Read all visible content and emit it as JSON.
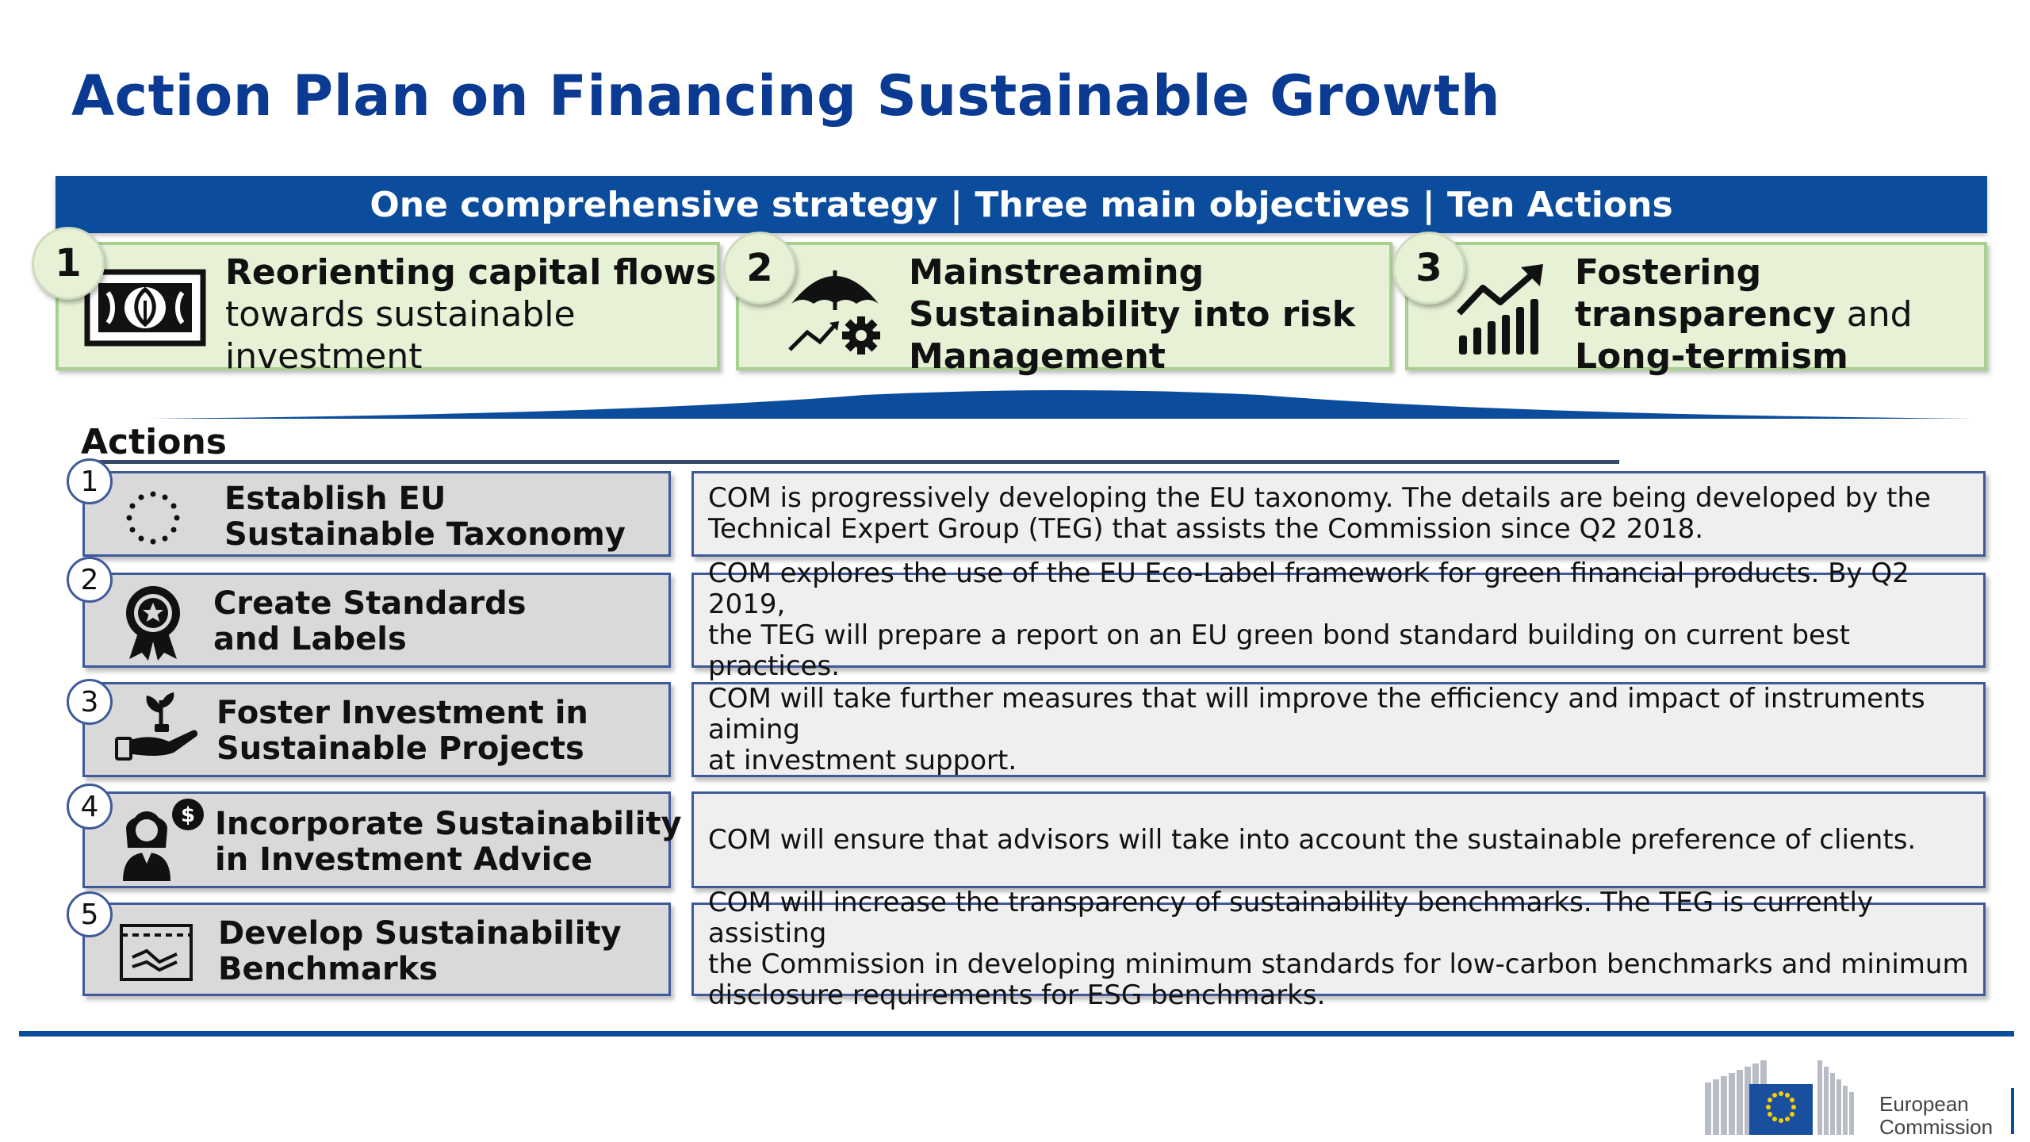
{
  "title": "Action Plan on Financing Sustainable Growth",
  "banner": "One comprehensive strategy | Three main objectives | Ten Actions",
  "objectives": [
    {
      "number": "1",
      "line1": "Reorienting capital flows",
      "line2": "towards sustainable",
      "line3": "investment",
      "icon": "banknote-leaf-icon"
    },
    {
      "number": "2",
      "line1": "Mainstreaming",
      "line2": "Sustainability into risk",
      "line3": "Management",
      "icon": "umbrella-gear-icon"
    },
    {
      "number": "3",
      "line1": "Fostering",
      "line2_bold": "transparency",
      "line2_rest": " and",
      "line3": "Long-termism",
      "icon": "growth-chart-icon"
    }
  ],
  "actions_heading": "Actions",
  "actions": [
    {
      "number": "1",
      "title1": "Establish EU",
      "title2": "Sustainable Taxonomy",
      "icon": "eu-stars-icon",
      "desc1": "COM is progressively developing the EU taxonomy. The details are being developed by the",
      "desc2": "Technical Expert Group (TEG) that assists the Commission since Q2 2018."
    },
    {
      "number": "2",
      "title1": "Create Standards",
      "title2": "and Labels",
      "icon": "award-badge-icon",
      "desc1": "COM explores the use of the EU Eco-Label framework for green financial products. By Q2 2019,",
      "desc2": "the TEG will prepare a report on an EU green bond standard building on current best practices."
    },
    {
      "number": "3",
      "title1": "Foster Investment in",
      "title2": "Sustainable Projects",
      "icon": "hand-plant-icon",
      "desc1": "COM will take further measures that will improve the efficiency and impact of instruments aiming",
      "desc2": "at investment support."
    },
    {
      "number": "4",
      "title1": "Incorporate Sustainability",
      "title2": "in Investment Advice",
      "icon": "advisor-dollar-icon",
      "desc1": "COM will ensure that advisors will take into account the sustainable preference of clients."
    },
    {
      "number": "5",
      "title1": "Develop Sustainability",
      "title2": "Benchmarks",
      "icon": "benchmark-chart-icon",
      "desc1": "COM will increase the transparency of sustainability benchmarks. The TEG is currently assisting",
      "desc2": "the Commission in developing minimum standards for low-carbon benchmarks and minimum",
      "desc3": "disclosure requirements for ESG benchmarks."
    }
  ],
  "logo": {
    "line1": "European",
    "line2": "Commission"
  },
  "colors": {
    "brand_blue": "#0b4c9c",
    "title_blue": "#0a3a92",
    "objective_green": "#e6f1d6",
    "action_gray": "#d9d9d9"
  }
}
